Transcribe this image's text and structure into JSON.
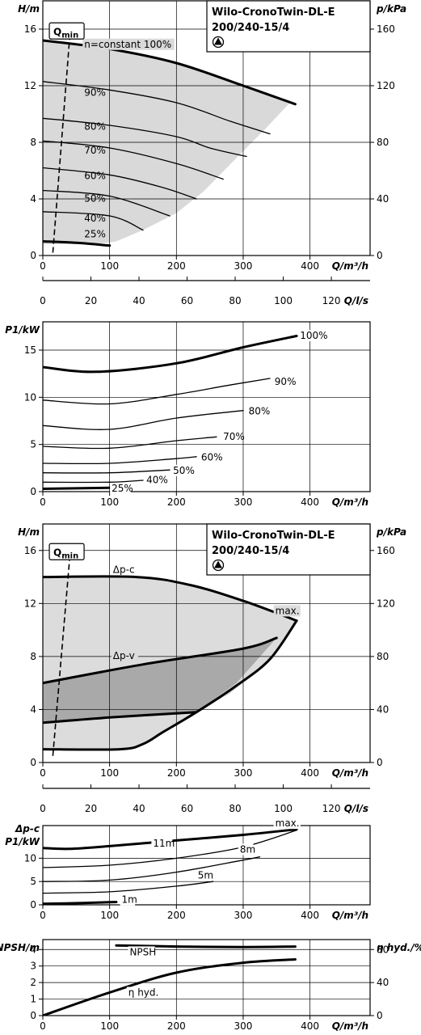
{
  "chart_data": [
    {
      "id": "c1",
      "type": "line",
      "title_lines": [
        "Wilo-CronoTwin-DL-E",
        "200/240-15/4"
      ],
      "ylabel": "H/m",
      "ylabel_right": "p/kPa",
      "xlabel": "Q/m³/h",
      "xlabel2": "Q/l/s",
      "qmin_label": "Qmin",
      "xlim": [
        0,
        490
      ],
      "ylim": [
        0,
        18
      ],
      "x_ticks": [
        0,
        100,
        200,
        300,
        400
      ],
      "y_ticks": [
        0,
        4,
        8,
        12,
        16
      ],
      "y_right_ticks": [
        0,
        40,
        80,
        120,
        160
      ],
      "y_right_factor": 10,
      "x2_ticks": [
        0,
        20,
        40,
        60,
        80,
        100,
        120
      ],
      "x2_factor": 3.6,
      "qmin_line": [
        [
          15,
          0.2
        ],
        [
          40,
          15.3
        ]
      ],
      "region": [
        [
          0,
          15.2
        ],
        [
          100,
          14.6
        ],
        [
          200,
          13.6
        ],
        [
          300,
          12.0
        ],
        [
          370,
          10.8
        ],
        [
          330,
          8.8
        ],
        [
          290,
          6.9
        ],
        [
          240,
          4.5
        ],
        [
          200,
          3.0
        ],
        [
          150,
          1.8
        ],
        [
          110,
          1.0
        ],
        [
          80,
          0.8
        ],
        [
          0,
          0.8
        ]
      ],
      "series": [
        {
          "name": "n=constant 100%",
          "bold": true,
          "points": [
            [
              0,
              15.2
            ],
            [
              100,
              14.6
            ],
            [
              200,
              13.6
            ],
            [
              300,
              12.0
            ],
            [
              378,
              10.7
            ]
          ]
        },
        {
          "name": "90%",
          "points": [
            [
              0,
              12.3
            ],
            [
              100,
              11.7
            ],
            [
              200,
              10.8
            ],
            [
              280,
              9.5
            ],
            [
              340,
              8.6
            ]
          ]
        },
        {
          "name": "80%",
          "points": [
            [
              0,
              9.7
            ],
            [
              100,
              9.2
            ],
            [
              200,
              8.4
            ],
            [
              250,
              7.6
            ],
            [
              305,
              7.0
            ]
          ]
        },
        {
          "name": "70%",
          "points": [
            [
              0,
              8.1
            ],
            [
              100,
              7.6
            ],
            [
              200,
              6.5
            ],
            [
              270,
              5.4
            ]
          ]
        },
        {
          "name": "60%",
          "points": [
            [
              0,
              6.2
            ],
            [
              100,
              5.7
            ],
            [
              180,
              4.8
            ],
            [
              230,
              4.0
            ]
          ]
        },
        {
          "name": "50%",
          "points": [
            [
              0,
              4.6
            ],
            [
              100,
              4.2
            ],
            [
              190,
              2.8
            ]
          ]
        },
        {
          "name": "40%",
          "points": [
            [
              0,
              3.1
            ],
            [
              100,
              2.8
            ],
            [
              150,
              1.8
            ]
          ]
        },
        {
          "name": "25%",
          "bold": true,
          "points": [
            [
              0,
              1.0
            ],
            [
              50,
              0.9
            ],
            [
              100,
              0.7
            ]
          ]
        }
      ]
    },
    {
      "id": "c2",
      "type": "line",
      "ylabel": "P1/kW",
      "xlabel": "Q/m³/h",
      "xlim": [
        0,
        490
      ],
      "ylim": [
        0,
        18
      ],
      "x_ticks": [
        0,
        100,
        200,
        300,
        400
      ],
      "y_ticks": [
        0,
        5,
        10,
        15
      ],
      "series": [
        {
          "name": "100%",
          "bold": true,
          "points": [
            [
              0,
              13.2
            ],
            [
              80,
              12.7
            ],
            [
              200,
              13.6
            ],
            [
              300,
              15.3
            ],
            [
              380,
              16.5
            ]
          ]
        },
        {
          "name": "90%",
          "points": [
            [
              0,
              9.7
            ],
            [
              100,
              9.3
            ],
            [
              200,
              10.3
            ],
            [
              280,
              11.3
            ],
            [
              340,
              12.0
            ]
          ]
        },
        {
          "name": "80%",
          "points": [
            [
              0,
              7.0
            ],
            [
              100,
              6.6
            ],
            [
              200,
              7.8
            ],
            [
              300,
              8.6
            ]
          ]
        },
        {
          "name": "70%",
          "points": [
            [
              0,
              4.8
            ],
            [
              100,
              4.6
            ],
            [
              200,
              5.4
            ],
            [
              260,
              5.8
            ]
          ]
        },
        {
          "name": "60%",
          "points": [
            [
              0,
              3.0
            ],
            [
              100,
              3.0
            ],
            [
              200,
              3.5
            ],
            [
              230,
              3.7
            ]
          ]
        },
        {
          "name": "50%",
          "points": [
            [
              0,
              2.0
            ],
            [
              100,
              2.0
            ],
            [
              190,
              2.3
            ]
          ]
        },
        {
          "name": "40%",
          "points": [
            [
              0,
              1.0
            ],
            [
              100,
              1.0
            ],
            [
              150,
              1.2
            ]
          ]
        },
        {
          "name": "25%",
          "bold": true,
          "points": [
            [
              0,
              0.3
            ],
            [
              100,
              0.4
            ]
          ]
        }
      ]
    },
    {
      "id": "c3",
      "type": "line",
      "title_lines": [
        "Wilo-CronoTwin-DL-E",
        "200/240-15/4"
      ],
      "ylabel": "H/m",
      "ylabel_right": "p/kPa",
      "xlabel": "Q/m³/h",
      "xlabel2": "Q/l/s",
      "qmin_label": "Qmin",
      "xlim": [
        0,
        490
      ],
      "ylim": [
        0,
        18
      ],
      "x_ticks": [
        0,
        100,
        200,
        300,
        400
      ],
      "y_ticks": [
        0,
        4,
        8,
        12,
        16
      ],
      "y_right_ticks": [
        0,
        40,
        80,
        120,
        160
      ],
      "y_right_factor": 10,
      "x2_ticks": [
        0,
        20,
        40,
        60,
        80,
        100,
        120
      ],
      "x2_factor": 3.6,
      "qmin_line": [
        [
          15,
          0.5
        ],
        [
          40,
          15.3
        ]
      ],
      "region_light": [
        [
          0,
          14.0
        ],
        [
          140,
          14.0
        ],
        [
          220,
          13.4
        ],
        [
          300,
          12.2
        ],
        [
          380,
          10.7
        ],
        [
          330,
          7.2
        ],
        [
          280,
          5.2
        ],
        [
          230,
          3.8
        ],
        [
          150,
          1.4
        ],
        [
          115,
          1.0
        ],
        [
          0,
          1.0
        ]
      ],
      "region_dark": [
        [
          0,
          6.0
        ],
        [
          150,
          7.4
        ],
        [
          300,
          8.6
        ],
        [
          350,
          9.4
        ],
        [
          290,
          6.0
        ],
        [
          230,
          3.8
        ],
        [
          0,
          3.0
        ]
      ],
      "series": [
        {
          "name": "Δp-c",
          "bold": true,
          "points": [
            [
              0,
              14.0
            ],
            [
              140,
              14.0
            ],
            [
              220,
              13.4
            ],
            [
              300,
              12.2
            ],
            [
              380,
              10.7
            ]
          ]
        },
        {
          "name": "max.",
          "bold": true,
          "points": [
            [
              380,
              10.7
            ],
            [
              340,
              7.8
            ],
            [
              290,
              5.8
            ],
            [
              230,
              3.8
            ],
            [
              180,
              2.3
            ],
            [
              150,
              1.4
            ],
            [
              115,
              1.0
            ],
            [
              0,
              1.0
            ]
          ]
        },
        {
          "name": "Δp-v",
          "bold": true,
          "points": [
            [
              0,
              6.0
            ],
            [
              150,
              7.4
            ],
            [
              300,
              8.6
            ],
            [
              350,
              9.4
            ]
          ]
        },
        {
          "name": "",
          "bold": true,
          "points": [
            [
              0,
              3.0
            ],
            [
              100,
              3.4
            ],
            [
              230,
              3.8
            ]
          ]
        }
      ]
    },
    {
      "id": "c4",
      "type": "line",
      "ylabel_lines": [
        "Δp-c",
        "P1/kW"
      ],
      "xlabel": "Q/m³/h",
      "xlim": [
        0,
        490
      ],
      "ylim": [
        0,
        17
      ],
      "x_ticks": [
        0,
        100,
        200,
        300,
        400
      ],
      "y_ticks": [
        0,
        5,
        10
      ],
      "series": [
        {
          "name": "max.",
          "bold": true,
          "points": [
            [
              0,
              12.2
            ],
            [
              40,
              12.0
            ],
            [
              100,
              12.6
            ],
            [
              200,
              13.8
            ],
            [
              300,
              15.0
            ],
            [
              380,
              16.2
            ]
          ]
        },
        {
          "name": "11m",
          "points": [
            [
              0,
              8.0
            ],
            [
              100,
              8.5
            ],
            [
              200,
              10.0
            ],
            [
              300,
              12.4
            ],
            [
              380,
              16.0
            ]
          ]
        },
        {
          "name": "8m",
          "points": [
            [
              0,
              5.0
            ],
            [
              100,
              5.3
            ],
            [
              200,
              7.0
            ],
            [
              300,
              9.6
            ],
            [
              325,
              10.3
            ]
          ]
        },
        {
          "name": "5m",
          "points": [
            [
              0,
              2.5
            ],
            [
              100,
              2.8
            ],
            [
              200,
              4.0
            ],
            [
              255,
              5.0
            ]
          ]
        },
        {
          "name": "1m",
          "bold": true,
          "points": [
            [
              0,
              0.2
            ],
            [
              60,
              0.4
            ],
            [
              110,
              0.6
            ]
          ]
        }
      ]
    },
    {
      "id": "c5",
      "type": "line",
      "ylabel": "NPSH/m",
      "ylabel_right": "η hyd./%",
      "xlabel": "Q/m³/h",
      "xlim": [
        0,
        490
      ],
      "ylim": [
        0,
        4.6
      ],
      "x_ticks": [
        0,
        100,
        200,
        300,
        400
      ],
      "y_ticks": [
        0,
        1,
        2,
        3,
        4
      ],
      "y_right_ticks": [
        0,
        40,
        80
      ],
      "y_right_factor": 20,
      "series": [
        {
          "name": "NPSH",
          "bold": true,
          "points": [
            [
              110,
              4.25
            ],
            [
              200,
              4.18
            ],
            [
              300,
              4.15
            ],
            [
              378,
              4.18
            ]
          ]
        },
        {
          "name": "η hyd.",
          "bold": true,
          "points": [
            [
              0,
              0.0
            ],
            [
              100,
              1.4
            ],
            [
              200,
              2.6
            ],
            [
              300,
              3.2
            ],
            [
              378,
              3.4
            ]
          ]
        }
      ]
    }
  ]
}
